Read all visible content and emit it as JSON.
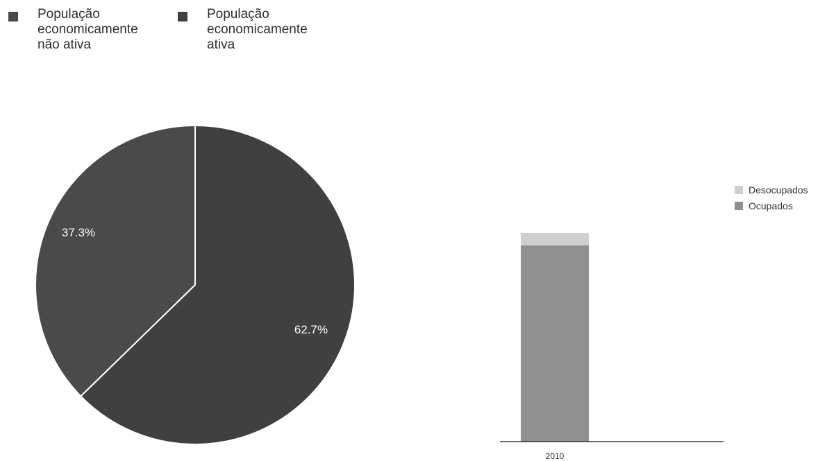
{
  "chart_data": [
    {
      "type": "pie",
      "legend_position": "top-left",
      "slices": [
        {
          "name": "População\neconomicamente\nnão ativa",
          "value": 37.3,
          "label": "37.3%",
          "color": "#4a4a4a"
        },
        {
          "name": "População\neconomicamente\nativa",
          "value": 62.7,
          "label": "62.7%",
          "color": "#404040"
        }
      ]
    },
    {
      "type": "bar",
      "stacked": true,
      "legend_position": "right",
      "categories": [
        "2010"
      ],
      "series": [
        {
          "name": "Desocupados",
          "values": [
            6
          ],
          "color": "#cfcfcf"
        },
        {
          "name": "Ocupados",
          "values": [
            94
          ],
          "color": "#8f8f8f"
        }
      ]
    }
  ]
}
